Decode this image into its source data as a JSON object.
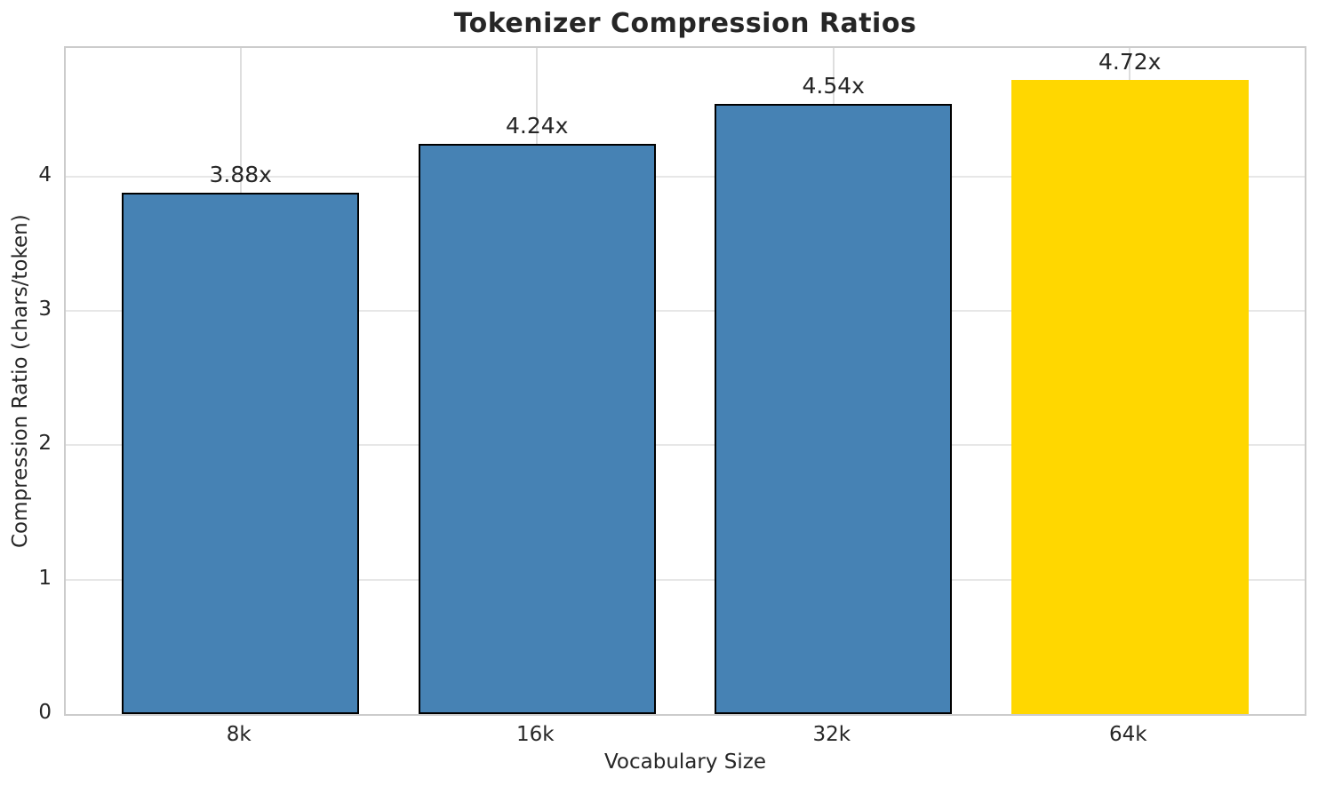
{
  "chart_data": {
    "type": "bar",
    "title": "Tokenizer Compression Ratios",
    "xlabel": "Vocabulary Size",
    "ylabel": "Compression Ratio (chars/token)",
    "categories": [
      "8k",
      "16k",
      "32k",
      "64k"
    ],
    "values": [
      3.88,
      4.24,
      4.54,
      4.72
    ],
    "value_labels": [
      "3.88x",
      "4.24x",
      "4.54x",
      "4.72x"
    ],
    "bar_colors": [
      "#4682B4",
      "#4682B4",
      "#4682B4",
      "#FFD700"
    ],
    "bar_edge_colors": [
      "#000000",
      "#000000",
      "#000000",
      "none"
    ],
    "highlight_index": 3,
    "ylim": [
      0,
      4.956
    ],
    "yticks": [
      0,
      1,
      2,
      3,
      4
    ],
    "grid": true,
    "legend_position": "none",
    "bar_width_fraction": 0.8
  },
  "style": {
    "accent_blue": "#4682B4",
    "accent_gold": "#FFD700",
    "bar_edge": "#000000",
    "grid_color": "#e2e2e2",
    "spine_color": "#cccccc",
    "text_color": "#262626",
    "background": "#ffffff"
  }
}
